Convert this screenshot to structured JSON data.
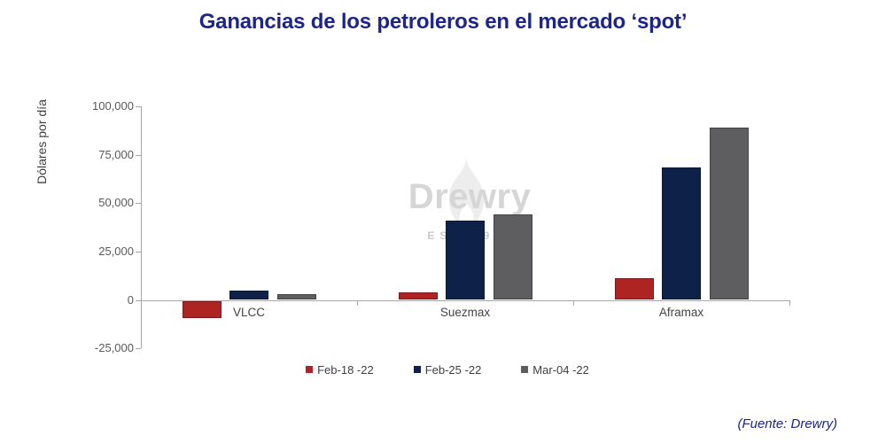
{
  "page": {
    "source": "(Fuente: Drewry)"
  },
  "watermark": {
    "name": "Drewry",
    "subtitle": "EST 1970"
  },
  "colors": {
    "title": "#1d2588",
    "axis": "#a6a6a6",
    "tick_label": "#595959",
    "category_label": "#444444",
    "watermark_text": "#d6d6d6"
  },
  "chart_data": {
    "type": "bar",
    "title": "Ganancias de los petroleros en el mercado ‘spot’",
    "xlabel": "",
    "ylabel": "Dólares por día",
    "categories": [
      "VLCC",
      "Suezmax",
      "Aframax"
    ],
    "series": [
      {
        "name": "Feb-18 -22",
        "color": "#ae2423",
        "values": [
          -9500,
          4000,
          11000
        ]
      },
      {
        "name": "Feb-25 -22",
        "color": "#0d2149",
        "values": [
          5000,
          41000,
          68500
        ]
      },
      {
        "name": "Mar-04 -22",
        "color": "#5e5e60",
        "values": [
          3000,
          44000,
          89000
        ]
      }
    ],
    "ylim": [
      -25000,
      100000
    ],
    "ytick_step": 25000,
    "ytick_values": [
      -25000,
      0,
      25000,
      50000,
      75000,
      100000
    ],
    "ytick_labels": [
      "-25,000",
      "0",
      "25,000",
      "50,000",
      "75,000",
      "100,000"
    ],
    "grid": false,
    "legend_position": "bottom"
  }
}
